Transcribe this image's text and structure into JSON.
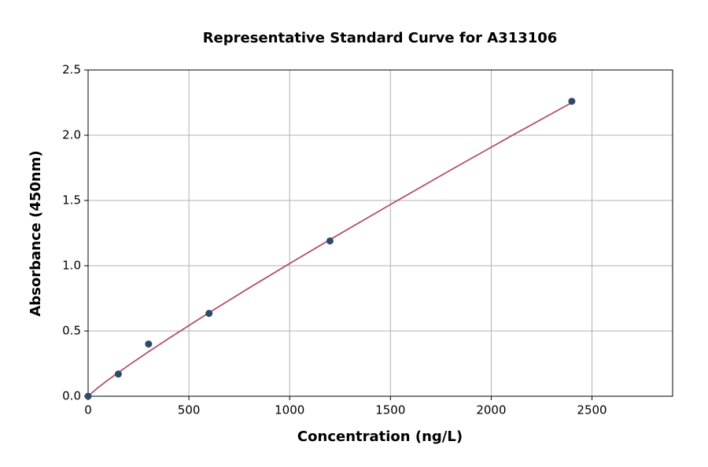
{
  "chart_data": {
    "type": "scatter",
    "title": "Representative Standard Curve for A313106",
    "x_label": "Concentration (ng/L)",
    "y_label": "Absorbance (450nm)",
    "series": [
      {
        "type": "scatter",
        "color": "#2d4a6b",
        "x": [
          0,
          150,
          300,
          600,
          1200,
          2400
        ],
        "values": [
          0.0,
          0.17,
          0.4,
          0.635,
          1.19,
          2.26
        ]
      },
      {
        "type": "line",
        "color": "#b5506f",
        "x": [
          0,
          50,
          100,
          200,
          300,
          400,
          600,
          800,
          1000,
          1200,
          1500,
          1800,
          2100,
          2400
        ],
        "values": [
          0.0,
          0.067,
          0.126,
          0.236,
          0.341,
          0.443,
          0.64,
          0.831,
          1.017,
          1.2,
          1.469,
          1.734,
          1.995,
          2.25
        ]
      }
    ],
    "xlim": [
      0,
      2900
    ],
    "ylim": [
      0,
      2.5
    ],
    "xticks": [
      0,
      500,
      1000,
      1500,
      2000,
      2500
    ],
    "yticks": [
      {
        "value": 0,
        "label": "0.0"
      },
      0.5,
      {
        "value": 1,
        "label": "1.0"
      },
      1.5,
      {
        "value": 2,
        "label": "2.0"
      },
      2.5
    ],
    "grid": true
  }
}
